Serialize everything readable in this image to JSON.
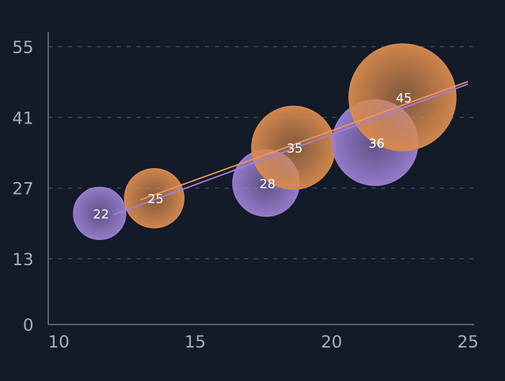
{
  "chart_data": {
    "type": "scatter",
    "subtype": "bubble",
    "xlim": [
      10,
      25
    ],
    "ylim": [
      0,
      55
    ],
    "x_ticks": [
      10,
      15,
      20,
      25
    ],
    "y_ticks": [
      0,
      13,
      27,
      41,
      55
    ],
    "grid": "horizontal-dashed",
    "legend": "none",
    "series": [
      {
        "color": "#9a7fd0",
        "trend_color": "#a17fe0",
        "points": [
          {
            "x": 11.5,
            "y": 22,
            "size": 22,
            "label": "22"
          },
          {
            "x": 17.6,
            "y": 28,
            "size": 28,
            "label": "28"
          },
          {
            "x": 21.6,
            "y": 36,
            "size": 36,
            "label": "36"
          }
        ],
        "trendline": {
          "x": [
            12.0,
            25.0
          ],
          "y": [
            21.7,
            47.6
          ]
        }
      },
      {
        "color": "#d88a4e",
        "trend_color": "#f0955a",
        "points": [
          {
            "x": 13.5,
            "y": 25,
            "size": 25,
            "label": "25"
          },
          {
            "x": 18.6,
            "y": 35,
            "size": 35,
            "label": "35"
          },
          {
            "x": 22.6,
            "y": 45,
            "size": 45,
            "label": "45"
          }
        ],
        "trendline": {
          "x": [
            13.0,
            25.0
          ],
          "y": [
            24.7,
            48.1
          ]
        }
      }
    ]
  }
}
